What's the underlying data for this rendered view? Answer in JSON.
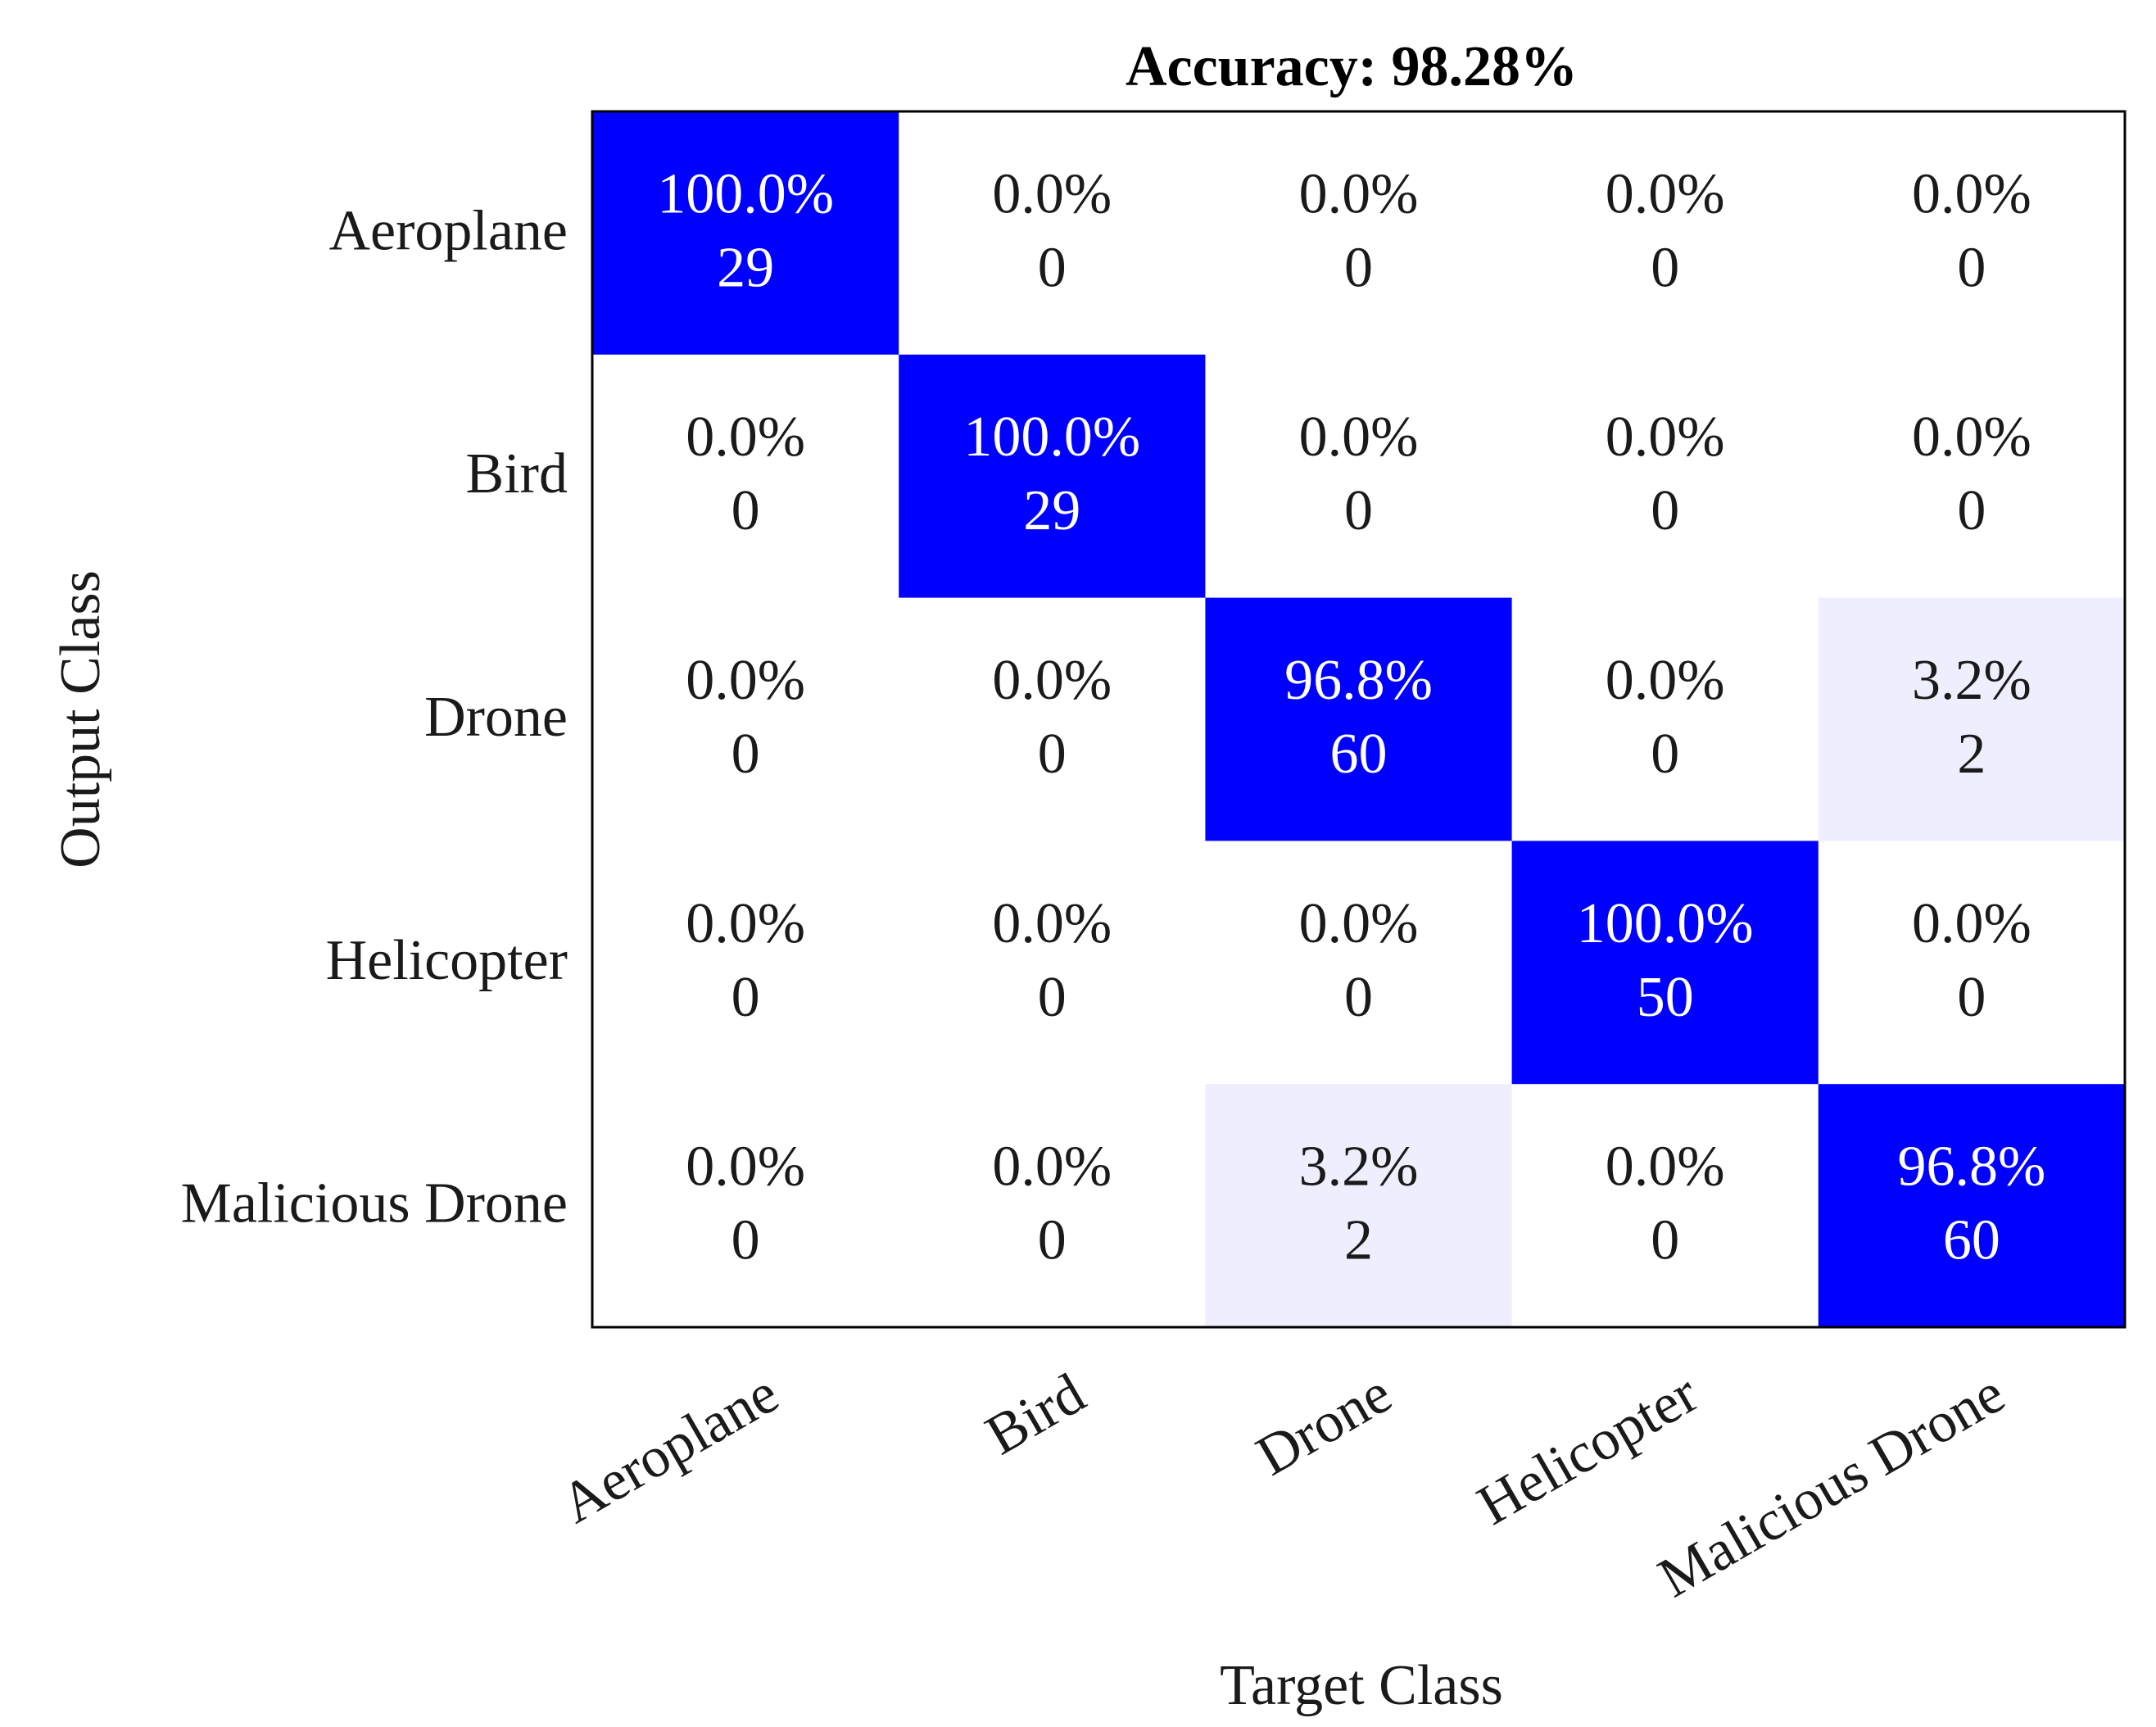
{
  "chart_data": {
    "type": "heatmap",
    "title": "Accuracy: 98.28%",
    "xlabel": "Target Class",
    "ylabel": "Output Class",
    "x_categories": [
      "Aeroplane",
      "Bird",
      "Drone",
      "Helicopter",
      "Malicious Drone"
    ],
    "y_categories": [
      "Aeroplane",
      "Bird",
      "Drone",
      "Helicopter",
      "Malicious Drone"
    ],
    "counts": [
      [
        29,
        0,
        0,
        0,
        0
      ],
      [
        0,
        29,
        0,
        0,
        0
      ],
      [
        0,
        0,
        60,
        0,
        2
      ],
      [
        0,
        0,
        0,
        50,
        0
      ],
      [
        0,
        0,
        2,
        0,
        60
      ]
    ],
    "percent_labels": [
      [
        "100.0%",
        "0.0%",
        "0.0%",
        "0.0%",
        "0.0%"
      ],
      [
        "0.0%",
        "100.0%",
        "0.0%",
        "0.0%",
        "0.0%"
      ],
      [
        "0.0%",
        "0.0%",
        "96.8%",
        "0.0%",
        "3.2%"
      ],
      [
        "0.0%",
        "0.0%",
        "0.0%",
        "100.0%",
        "0.0%"
      ],
      [
        "0.0%",
        "0.0%",
        "3.2%",
        "0.0%",
        "96.8%"
      ]
    ],
    "colors": {
      "high": "#0000ff",
      "low": "#ffffff",
      "text_on_high": "#ffffff",
      "text_on_low": "#1a1a1a"
    }
  }
}
